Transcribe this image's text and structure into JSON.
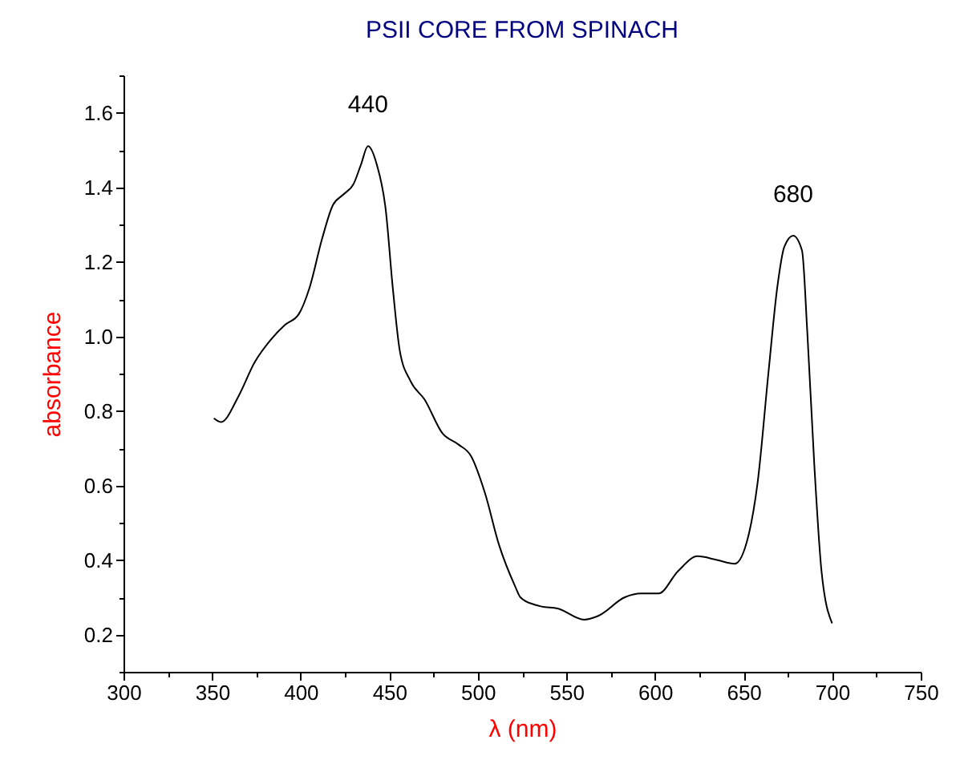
{
  "chart_data": {
    "type": "line",
    "title": "PSII CORE FROM SPINACH",
    "xlabel": "λ (nm)",
    "ylabel": "absorbance",
    "x": [
      351,
      355,
      365,
      374,
      383,
      391,
      399,
      405,
      412,
      418,
      424,
      430,
      434,
      438,
      443,
      448,
      452,
      456,
      462,
      470,
      480,
      489,
      496,
      504,
      512,
      521,
      524,
      532,
      536,
      545,
      560,
      568,
      583,
      592,
      602,
      613,
      624,
      635,
      645,
      653,
      658,
      664,
      669,
      673,
      678,
      683,
      686,
      690,
      694,
      700
    ],
    "series": [
      {
        "color": "#000000",
        "values": [
          0.78,
          0.77,
          0.84,
          0.93,
          0.99,
          1.03,
          1.06,
          1.13,
          1.26,
          1.35,
          1.38,
          1.41,
          1.46,
          1.51,
          1.46,
          1.34,
          1.13,
          0.96,
          0.88,
          0.83,
          0.74,
          0.71,
          0.68,
          0.58,
          0.44,
          0.33,
          0.3,
          0.28,
          0.275,
          0.27,
          0.24,
          0.25,
          0.3,
          0.31,
          0.31,
          0.37,
          0.41,
          0.4,
          0.39,
          0.47,
          0.61,
          0.9,
          1.13,
          1.24,
          1.27,
          1.23,
          1.01,
          0.65,
          0.37,
          0.23
        ]
      }
    ],
    "xlim": [
      300,
      750
    ],
    "xticks": [
      300,
      {
        "value": 325,
        "label": null
      },
      350,
      {
        "value": 375,
        "label": null
      },
      400,
      {
        "value": 425,
        "label": null
      },
      450,
      {
        "value": 475,
        "label": null
      },
      500,
      {
        "value": 525,
        "label": null
      },
      550,
      {
        "value": 575,
        "label": null
      },
      600,
      {
        "value": 625,
        "label": null
      },
      650,
      {
        "value": 675,
        "label": null
      },
      700,
      {
        "value": 725,
        "label": null
      },
      750
    ],
    "ylim": [
      0.1,
      1.7
    ],
    "yticks": [
      {
        "value": 0.1,
        "label": null
      },
      {
        "value": 0.2,
        "label": "0.2"
      },
      {
        "value": 0.3,
        "label": null
      },
      {
        "value": 0.4,
        "label": "0.4"
      },
      {
        "value": 0.5,
        "label": null
      },
      {
        "value": 0.6,
        "label": "0.6"
      },
      {
        "value": 0.7,
        "label": null
      },
      {
        "value": 0.8,
        "label": "0.8"
      },
      {
        "value": 0.9,
        "label": null
      },
      {
        "value": 1.0,
        "label": "1.0"
      },
      {
        "value": 1.1,
        "label": null
      },
      {
        "value": 1.2,
        "label": "1.2"
      },
      {
        "value": 1.3,
        "label": null
      },
      {
        "value": 1.4,
        "label": "1.4"
      },
      {
        "value": 1.5,
        "label": null
      },
      {
        "value": 1.6,
        "label": "1.6"
      },
      {
        "value": 1.7,
        "label": null
      }
    ],
    "annotations": [
      {
        "text": "440",
        "x": 438,
        "y": 1.51
      },
      {
        "text": "680",
        "x": 678,
        "y": 1.27
      }
    ],
    "grid": false,
    "marker": "none",
    "line_style": "solid"
  }
}
